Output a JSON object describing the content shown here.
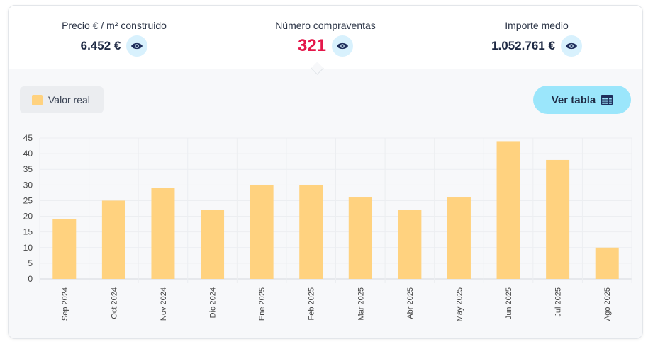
{
  "stats": [
    {
      "label": "Precio € / m² construido",
      "value": "6.452 €",
      "highlight": false,
      "icon": "eye-icon"
    },
    {
      "label": "Número compraventas",
      "value": "321",
      "highlight": true,
      "icon": "eye-icon"
    },
    {
      "label": "Importe medio",
      "value": "1.052.761 €",
      "highlight": false,
      "icon": "eye-icon"
    }
  ],
  "legend": {
    "label": "Valor real",
    "color": "#ffd27f"
  },
  "table_button": {
    "label": "Ver tabla",
    "icon": "table-grid-icon"
  },
  "colors": {
    "accent": "#e4174a",
    "bar": "#ffd27f",
    "button": "#9be6fb",
    "eye_bg": "#d8f1fd"
  },
  "chart_data": {
    "type": "bar",
    "categories": [
      "Sep 2024",
      "Oct 2024",
      "Nov 2024",
      "Dic 2024",
      "Ene 2025",
      "Feb 2025",
      "Mar 2025",
      "Abr 2025",
      "May 2025",
      "Jun 2025",
      "Jul 2025",
      "Ago 2025"
    ],
    "series": [
      {
        "name": "Valor real",
        "values": [
          19,
          25,
          29,
          22,
          30,
          30,
          26,
          22,
          26,
          44,
          38,
          10
        ]
      }
    ],
    "yticks": [
      0,
      5,
      10,
      15,
      20,
      25,
      30,
      35,
      40,
      45
    ],
    "ylim": [
      0,
      45
    ],
    "grid": true,
    "legend_position": "top-left"
  }
}
